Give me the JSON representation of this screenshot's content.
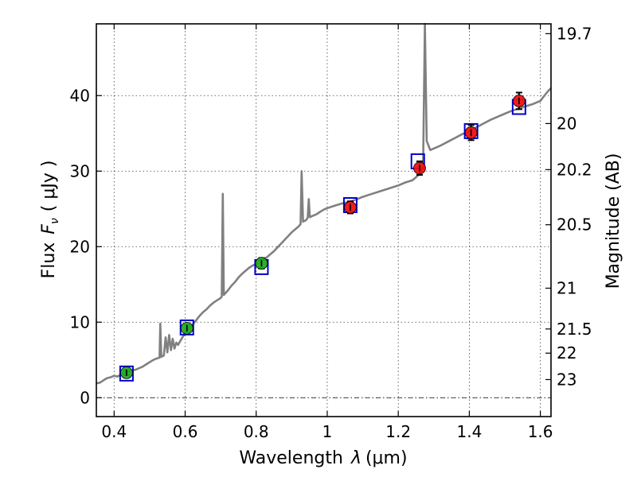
{
  "chart_data": {
    "type": "scatter",
    "xlabel_text": "Wavelength",
    "xlabel_symbol": "λ",
    "xlabel_unit": "(μm)",
    "ylabel_text": "Flux",
    "ylabel_symbol": "F",
    "ylabel_subscript": "ν",
    "ylabel_unit": "( μJy )",
    "y2label": "Magnitude (AB)",
    "xlim": [
      0.35,
      1.63
    ],
    "ylim": [
      -2.5,
      49.5
    ],
    "x_ticks": [
      0.4,
      0.6,
      0.8,
      1.0,
      1.2,
      1.4,
      1.6
    ],
    "x_tick_labels": [
      "0.4",
      "0.6",
      "0.8",
      "1",
      "1.2",
      "1.4",
      "1.6"
    ],
    "y_ticks": [
      0,
      10,
      20,
      30,
      40
    ],
    "y_tick_labels": [
      "0",
      "10",
      "20",
      "30",
      "40"
    ],
    "y2_ticks": [
      {
        "label": "19.7",
        "flux": 48.2
      },
      {
        "label": "20",
        "flux": 36.3
      },
      {
        "label": "20.2",
        "flux": 30.2
      },
      {
        "label": "20.5",
        "flux": 22.9
      },
      {
        "label": "21",
        "flux": 14.5
      },
      {
        "label": "21.5",
        "flux": 9.1
      },
      {
        "label": "22",
        "flux": 5.9
      },
      {
        "label": "23",
        "flux": 2.4
      }
    ],
    "zero_line": 0,
    "grid": true,
    "colors": {
      "spectrum": "#808080",
      "model_box": "#0000cc",
      "optical": "#22aa22",
      "nir": "#ee1111",
      "errorbar": "#000000"
    },
    "spectrum": [
      [
        0.35,
        1.9
      ],
      [
        0.36,
        2.0
      ],
      [
        0.37,
        2.3
      ],
      [
        0.38,
        2.6
      ],
      [
        0.39,
        2.7
      ],
      [
        0.4,
        2.9
      ],
      [
        0.41,
        2.8
      ],
      [
        0.42,
        3.1
      ],
      [
        0.43,
        3.2
      ],
      [
        0.44,
        3.4
      ],
      [
        0.45,
        3.6
      ],
      [
        0.46,
        3.7
      ],
      [
        0.47,
        3.9
      ],
      [
        0.48,
        4.1
      ],
      [
        0.49,
        4.4
      ],
      [
        0.5,
        4.7
      ],
      [
        0.51,
        5.0
      ],
      [
        0.52,
        5.2
      ],
      [
        0.528,
        5.3
      ],
      [
        0.53,
        9.8
      ],
      [
        0.533,
        5.4
      ],
      [
        0.54,
        5.6
      ],
      [
        0.545,
        8.0
      ],
      [
        0.55,
        6.0
      ],
      [
        0.555,
        8.3
      ],
      [
        0.56,
        6.3
      ],
      [
        0.565,
        7.8
      ],
      [
        0.57,
        6.5
      ],
      [
        0.575,
        7.3
      ],
      [
        0.58,
        7.0
      ],
      [
        0.59,
        7.8
      ],
      [
        0.6,
        8.6
      ],
      [
        0.61,
        9.2
      ],
      [
        0.62,
        9.6
      ],
      [
        0.63,
        10.2
      ],
      [
        0.64,
        10.8
      ],
      [
        0.65,
        11.3
      ],
      [
        0.66,
        11.7
      ],
      [
        0.67,
        12.2
      ],
      [
        0.68,
        12.6
      ],
      [
        0.69,
        12.9
      ],
      [
        0.7,
        13.2
      ],
      [
        0.703,
        13.4
      ],
      [
        0.706,
        27.0
      ],
      [
        0.709,
        13.6
      ],
      [
        0.72,
        14.2
      ],
      [
        0.73,
        14.8
      ],
      [
        0.74,
        15.3
      ],
      [
        0.75,
        15.9
      ],
      [
        0.76,
        16.4
      ],
      [
        0.77,
        16.8
      ],
      [
        0.78,
        17.2
      ],
      [
        0.79,
        17.5
      ],
      [
        0.8,
        17.7
      ],
      [
        0.81,
        18.0
      ],
      [
        0.82,
        18.3
      ],
      [
        0.83,
        18.6
      ],
      [
        0.84,
        19.0
      ],
      [
        0.85,
        19.4
      ],
      [
        0.86,
        19.9
      ],
      [
        0.87,
        20.4
      ],
      [
        0.88,
        20.9
      ],
      [
        0.89,
        21.4
      ],
      [
        0.9,
        21.9
      ],
      [
        0.91,
        22.3
      ],
      [
        0.92,
        22.7
      ],
      [
        0.925,
        23.0
      ],
      [
        0.928,
        30.0
      ],
      [
        0.932,
        23.3
      ],
      [
        0.94,
        23.5
      ],
      [
        0.945,
        23.8
      ],
      [
        0.948,
        26.3
      ],
      [
        0.951,
        23.9
      ],
      [
        0.96,
        24.1
      ],
      [
        0.97,
        24.3
      ],
      [
        0.98,
        24.6
      ],
      [
        0.99,
        24.9
      ],
      [
        1.0,
        25.1
      ],
      [
        1.02,
        25.4
      ],
      [
        1.04,
        25.7
      ],
      [
        1.06,
        25.9
      ],
      [
        1.08,
        26.2
      ],
      [
        1.1,
        26.6
      ],
      [
        1.12,
        26.9
      ],
      [
        1.14,
        27.2
      ],
      [
        1.16,
        27.5
      ],
      [
        1.18,
        27.8
      ],
      [
        1.2,
        28.1
      ],
      [
        1.22,
        28.5
      ],
      [
        1.24,
        28.8
      ],
      [
        1.26,
        29.6
      ],
      [
        1.27,
        30.8
      ],
      [
        1.275,
        49.5
      ],
      [
        1.28,
        34.0
      ],
      [
        1.29,
        32.8
      ],
      [
        1.3,
        33.0
      ],
      [
        1.32,
        33.4
      ],
      [
        1.34,
        33.9
      ],
      [
        1.36,
        34.4
      ],
      [
        1.38,
        34.9
      ],
      [
        1.4,
        35.3
      ],
      [
        1.42,
        35.8
      ],
      [
        1.44,
        36.3
      ],
      [
        1.46,
        36.8
      ],
      [
        1.48,
        37.2
      ],
      [
        1.5,
        37.6
      ],
      [
        1.52,
        38.0
      ],
      [
        1.54,
        38.3
      ],
      [
        1.56,
        38.6
      ],
      [
        1.58,
        38.9
      ],
      [
        1.6,
        39.3
      ],
      [
        1.62,
        40.5
      ],
      [
        1.63,
        41.0
      ]
    ],
    "model_boxes": [
      {
        "x": 0.435,
        "y": 3.2
      },
      {
        "x": 0.605,
        "y": 9.3
      },
      {
        "x": 0.815,
        "y": 17.3
      },
      {
        "x": 1.065,
        "y": 25.5
      },
      {
        "x": 1.255,
        "y": 31.3
      },
      {
        "x": 1.405,
        "y": 35.3
      },
      {
        "x": 1.54,
        "y": 38.5
      }
    ],
    "optical_points": [
      {
        "x": 0.435,
        "y": 3.3,
        "err": 0.3
      },
      {
        "x": 0.605,
        "y": 9.2,
        "err": 0.5
      },
      {
        "x": 0.815,
        "y": 17.8,
        "err": 0.7
      }
    ],
    "nir_points": [
      {
        "x": 1.065,
        "y": 25.2,
        "err": 0.8
      },
      {
        "x": 1.26,
        "y": 30.4,
        "err": 0.9
      },
      {
        "x": 1.405,
        "y": 35.1,
        "err": 1.0
      },
      {
        "x": 1.54,
        "y": 39.3,
        "err": 1.1
      }
    ]
  }
}
